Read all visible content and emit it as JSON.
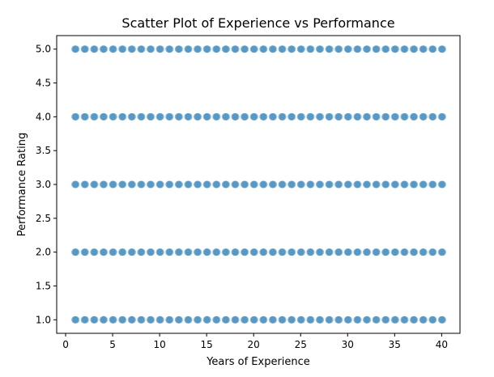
{
  "chart_data": {
    "type": "scatter",
    "title": "Scatter Plot of Experience vs Performance",
    "xlabel": "Years of Experience",
    "ylabel": "Performance Rating",
    "xlim": [
      -0.95,
      41.95
    ],
    "ylim": [
      0.8,
      5.2
    ],
    "xticks": [
      0,
      5,
      10,
      15,
      20,
      25,
      30,
      35,
      40
    ],
    "xtick_labels": [
      "0",
      "5",
      "10",
      "15",
      "20",
      "25",
      "30",
      "35",
      "40"
    ],
    "yticks": [
      1.0,
      1.5,
      2.0,
      2.5,
      3.0,
      3.5,
      4.0,
      4.5,
      5.0
    ],
    "ytick_labels": [
      "1.0",
      "1.5",
      "2.0",
      "2.5",
      "3.0",
      "3.5",
      "4.0",
      "4.5",
      "5.0"
    ],
    "grid": false,
    "legend": false,
    "marker_color": "#1f77b4",
    "marker_alpha": 0.5,
    "series": [
      {
        "x": [
          1,
          2,
          3,
          4,
          5,
          6,
          7,
          8,
          9,
          10,
          11,
          12,
          13,
          14,
          15,
          16,
          17,
          18,
          19,
          20,
          21,
          22,
          23,
          24,
          25,
          26,
          27,
          28,
          29,
          30,
          31,
          32,
          33,
          34,
          35,
          36,
          37,
          38,
          39,
          40,
          1,
          2,
          3,
          4,
          5,
          6,
          7,
          8,
          9,
          10,
          11,
          12,
          13,
          14,
          15,
          16,
          17,
          18,
          19,
          20,
          21,
          22,
          23,
          24,
          25,
          26,
          27,
          28,
          29,
          30,
          31,
          32,
          33,
          34,
          35,
          36,
          37,
          38,
          39,
          40,
          1,
          2,
          3,
          4,
          5,
          6,
          7,
          8,
          9,
          10,
          11,
          12,
          13,
          14,
          15,
          16,
          17,
          18,
          19,
          20,
          21,
          22,
          23,
          24,
          25,
          26,
          27,
          28,
          29,
          30,
          31,
          32,
          33,
          34,
          35,
          36,
          37,
          38,
          39,
          40,
          1,
          2,
          3,
          4,
          5,
          6,
          7,
          8,
          9,
          10,
          11,
          12,
          13,
          14,
          15,
          16,
          17,
          18,
          19,
          20,
          21,
          22,
          23,
          24,
          25,
          26,
          27,
          28,
          29,
          30,
          31,
          32,
          33,
          34,
          35,
          36,
          37,
          38,
          39,
          40,
          1,
          2,
          3,
          4,
          5,
          6,
          7,
          8,
          9,
          10,
          11,
          12,
          13,
          14,
          15,
          16,
          17,
          18,
          19,
          20,
          21,
          22,
          23,
          24,
          25,
          26,
          27,
          28,
          29,
          30,
          31,
          32,
          33,
          34,
          35,
          36,
          37,
          38,
          39,
          40
        ],
        "y": [
          5,
          5,
          5,
          5,
          5,
          5,
          5,
          5,
          5,
          5,
          5,
          5,
          5,
          5,
          5,
          5,
          5,
          5,
          5,
          5,
          5,
          5,
          5,
          5,
          5,
          5,
          5,
          5,
          5,
          5,
          5,
          5,
          5,
          5,
          5,
          5,
          5,
          5,
          5,
          5,
          4,
          4,
          4,
          4,
          4,
          4,
          4,
          4,
          4,
          4,
          4,
          4,
          4,
          4,
          4,
          4,
          4,
          4,
          4,
          4,
          4,
          4,
          4,
          4,
          4,
          4,
          4,
          4,
          4,
          4,
          4,
          4,
          4,
          4,
          4,
          4,
          4,
          4,
          4,
          4,
          3,
          3,
          3,
          3,
          3,
          3,
          3,
          3,
          3,
          3,
          3,
          3,
          3,
          3,
          3,
          3,
          3,
          3,
          3,
          3,
          3,
          3,
          3,
          3,
          3,
          3,
          3,
          3,
          3,
          3,
          3,
          3,
          3,
          3,
          3,
          3,
          3,
          3,
          3,
          3,
          2,
          2,
          2,
          2,
          2,
          2,
          2,
          2,
          2,
          2,
          2,
          2,
          2,
          2,
          2,
          2,
          2,
          2,
          2,
          2,
          2,
          2,
          2,
          2,
          2,
          2,
          2,
          2,
          2,
          2,
          2,
          2,
          2,
          2,
          2,
          2,
          2,
          2,
          2,
          2,
          1,
          1,
          1,
          1,
          1,
          1,
          1,
          1,
          1,
          1,
          1,
          1,
          1,
          1,
          1,
          1,
          1,
          1,
          1,
          1,
          1,
          1,
          1,
          1,
          1,
          1,
          1,
          1,
          1,
          1,
          1,
          1,
          1,
          1,
          1,
          1,
          1,
          1,
          1,
          1
        ]
      }
    ]
  }
}
